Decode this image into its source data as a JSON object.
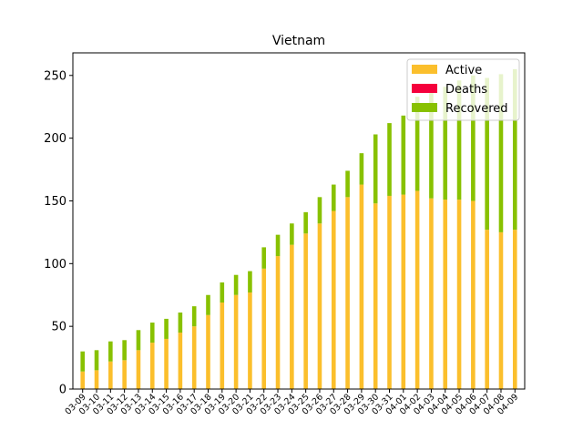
{
  "chart_data": {
    "type": "bar",
    "stacked": true,
    "title": "Vietnam",
    "xlabel": "",
    "ylabel": "",
    "ylim": [
      0,
      268
    ],
    "yticks": [
      0,
      50,
      100,
      150,
      200,
      250
    ],
    "grid": false,
    "legend_position": "top-right",
    "categories": [
      "03-09",
      "03-10",
      "03-11",
      "03-12",
      "03-13",
      "03-14",
      "03-15",
      "03-16",
      "03-17",
      "03-18",
      "03-19",
      "03-20",
      "03-21",
      "03-22",
      "03-23",
      "03-24",
      "03-25",
      "03-26",
      "03-27",
      "03-28",
      "03-29",
      "03-30",
      "03-31",
      "04-01",
      "04-02",
      "04-03",
      "04-04",
      "04-05",
      "04-06",
      "04-07",
      "04-08",
      "04-09"
    ],
    "series": [
      {
        "name": "Active",
        "color": "#fbbf2c",
        "values": [
          14,
          15,
          22,
          23,
          31,
          37,
          40,
          45,
          50,
          59,
          69,
          75,
          77,
          96,
          106,
          115,
          124,
          132,
          142,
          153,
          163,
          148,
          154,
          155,
          158,
          152,
          151,
          151,
          150,
          127,
          125,
          127
        ]
      },
      {
        "name": "Deaths",
        "color": "#f5003c",
        "values": [
          0,
          0,
          0,
          0,
          0,
          0,
          0,
          0,
          0,
          0,
          0,
          0,
          0,
          0,
          0,
          0,
          0,
          0,
          0,
          0,
          0,
          0,
          0,
          0,
          0,
          0,
          0,
          0,
          0,
          0,
          0,
          0
        ]
      },
      {
        "name": "Recovered",
        "color": "#88c100",
        "values": [
          16,
          16,
          16,
          16,
          16,
          16,
          16,
          16,
          16,
          16,
          16,
          16,
          17,
          17,
          17,
          17,
          17,
          21,
          21,
          21,
          25,
          55,
          58,
          63,
          75,
          85,
          90,
          95,
          100,
          121,
          126,
          128
        ]
      }
    ]
  }
}
